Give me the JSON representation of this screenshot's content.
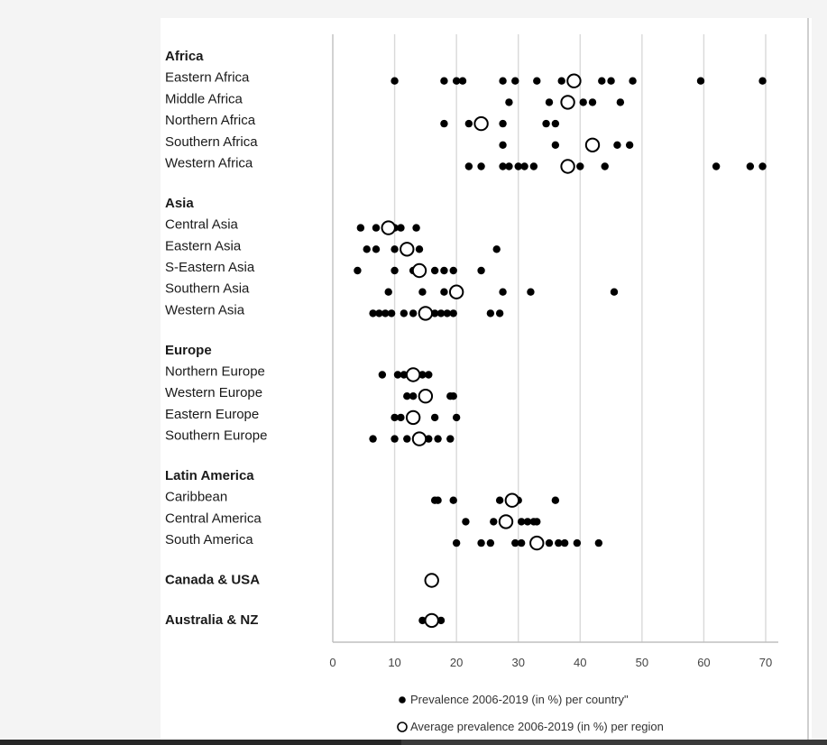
{
  "chart_data": {
    "type": "scatter",
    "title": "",
    "xlabel": "",
    "ylabel": "",
    "xlim": [
      0,
      70
    ],
    "xticks": [
      0,
      10,
      20,
      30,
      40,
      50,
      60,
      70
    ],
    "grid": "vertical",
    "legend_position": "bottom",
    "legend": {
      "country": "Prevalence 2006-2019  (in %) per country\"",
      "region": "Average prevalence 2006-2019 (in %) per region"
    },
    "colors": {
      "dot": "#000000",
      "grid": "#d9d9d9",
      "axis": "#bfbfbf",
      "open_marker_fill": "#ffffff"
    },
    "groups": [
      {
        "name": "Africa",
        "regions": [
          {
            "name": "Eastern Africa",
            "average": 39,
            "countries": [
              10,
              18,
              20,
              21,
              27.5,
              29.5,
              33,
              37,
              43.5,
              45,
              48.5,
              59.5,
              69.5
            ]
          },
          {
            "name": "Middle Africa",
            "average": 38,
            "countries": [
              28.5,
              35,
              40.5,
              42,
              46.5
            ]
          },
          {
            "name": "Northern Africa",
            "average": 24,
            "countries": [
              18,
              22,
              27.5,
              34.5,
              36
            ]
          },
          {
            "name": "Southern Africa",
            "average": 42,
            "countries": [
              27.5,
              36,
              46,
              48
            ]
          },
          {
            "name": "Western Africa",
            "average": 38,
            "countries": [
              22,
              24,
              27.5,
              28.5,
              30,
              31,
              32.5,
              40,
              44,
              62,
              67.5,
              69.5
            ]
          }
        ]
      },
      {
        "name": "Asia",
        "regions": [
          {
            "name": "Central Asia",
            "average": 9,
            "countries": [
              4.5,
              7,
              10,
              11,
              13.5
            ]
          },
          {
            "name": "Eastern Asia",
            "average": 12,
            "countries": [
              5.5,
              7,
              10,
              14,
              26.5
            ]
          },
          {
            "name": "S-Eastern Asia",
            "average": 14,
            "countries": [
              4,
              10,
              13,
              16.5,
              18,
              19.5,
              24
            ]
          },
          {
            "name": "Southern Asia",
            "average": 20,
            "countries": [
              9,
              14.5,
              18,
              27.5,
              32,
              45.5
            ]
          },
          {
            "name": "Western Asia",
            "average": 15,
            "countries": [
              6.5,
              7.5,
              8.5,
              9.5,
              11.5,
              13,
              16.5,
              17.5,
              18.5,
              19.5,
              25.5,
              27
            ]
          }
        ]
      },
      {
        "name": "Europe",
        "regions": [
          {
            "name": "Northern Europe",
            "average": 13,
            "countries": [
              8,
              10.5,
              11.5,
              14.5,
              15.5
            ]
          },
          {
            "name": "Western Europe",
            "average": 15,
            "countries": [
              12,
              13,
              19,
              19.5
            ]
          },
          {
            "name": "Eastern Europe",
            "average": 13,
            "countries": [
              10,
              11,
              16.5,
              20
            ]
          },
          {
            "name": "Southern Europe",
            "average": 14,
            "countries": [
              6.5,
              10,
              12,
              15.5,
              17,
              19
            ]
          }
        ]
      },
      {
        "name": "Latin America",
        "regions": [
          {
            "name": "Caribbean",
            "average": 29,
            "countries": [
              16.5,
              17,
              19.5,
              27,
              30,
              36
            ]
          },
          {
            "name": "Central America",
            "average": 28,
            "countries": [
              21.5,
              26,
              30.5,
              31.5,
              32.5,
              33
            ]
          },
          {
            "name": "South America",
            "average": 33,
            "countries": [
              20,
              24,
              25.5,
              29.5,
              30.5,
              35,
              36.5,
              37.5,
              39.5,
              43
            ]
          }
        ]
      },
      {
        "name": "Canada & USA",
        "regions": [
          {
            "name": "",
            "average": 16,
            "countries": [
              15.5
            ]
          }
        ]
      },
      {
        "name": "Australia & NZ",
        "regions": [
          {
            "name": "",
            "average": 16,
            "countries": [
              14.5,
              17.5
            ]
          }
        ]
      }
    ]
  }
}
